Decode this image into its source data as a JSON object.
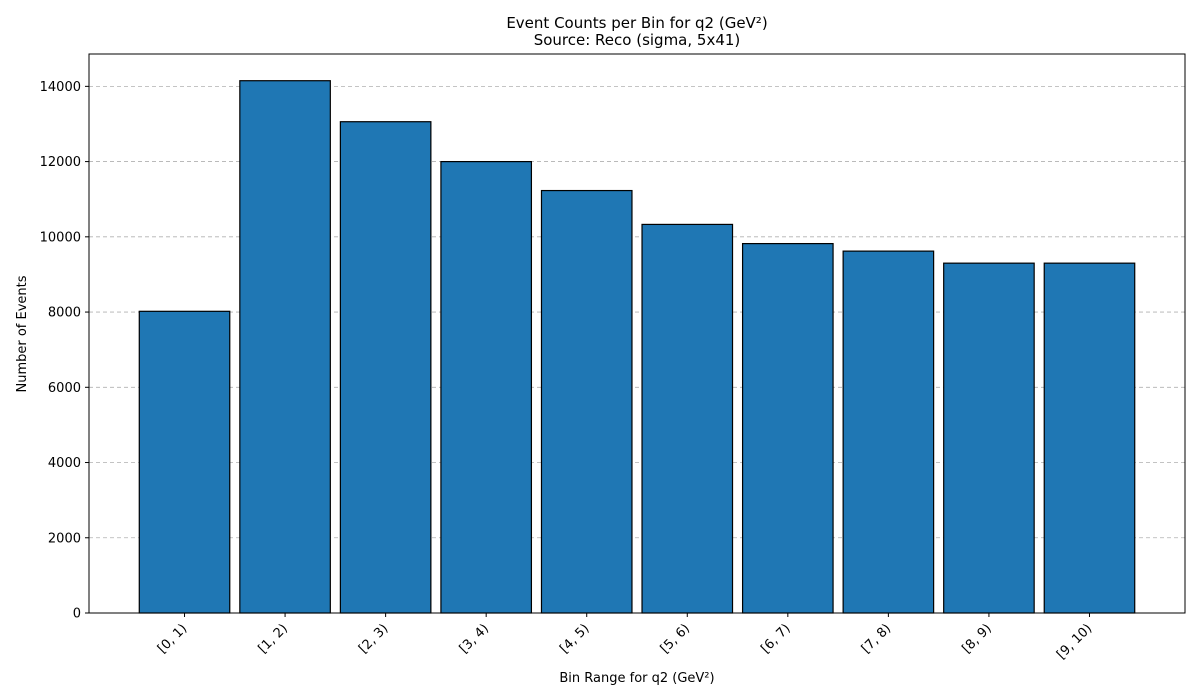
{
  "chart_data": {
    "type": "bar",
    "title": "Event Counts per Bin for q2 (GeV²)",
    "subtitle": "Source: Reco (sigma, 5x41)",
    "xlabel": "Bin Range for q2 (GeV²)",
    "ylabel": "Number of Events",
    "categories": [
      "[0, 1)",
      "[1, 2)",
      "[2, 3)",
      "[3, 4)",
      "[4, 5)",
      "[5, 6)",
      "[6, 7)",
      "[7, 8)",
      "[8, 9)",
      "[9, 10)"
    ],
    "values": [
      8020,
      14150,
      13060,
      12000,
      11230,
      10330,
      9820,
      9620,
      9300,
      9300
    ],
    "ylim": [
      0,
      14860
    ],
    "yticks": [
      0,
      2000,
      4000,
      6000,
      8000,
      10000,
      12000,
      14000
    ],
    "grid": "y-dashed",
    "bar_color": "#1f77b4",
    "edge_color": "#000000"
  }
}
